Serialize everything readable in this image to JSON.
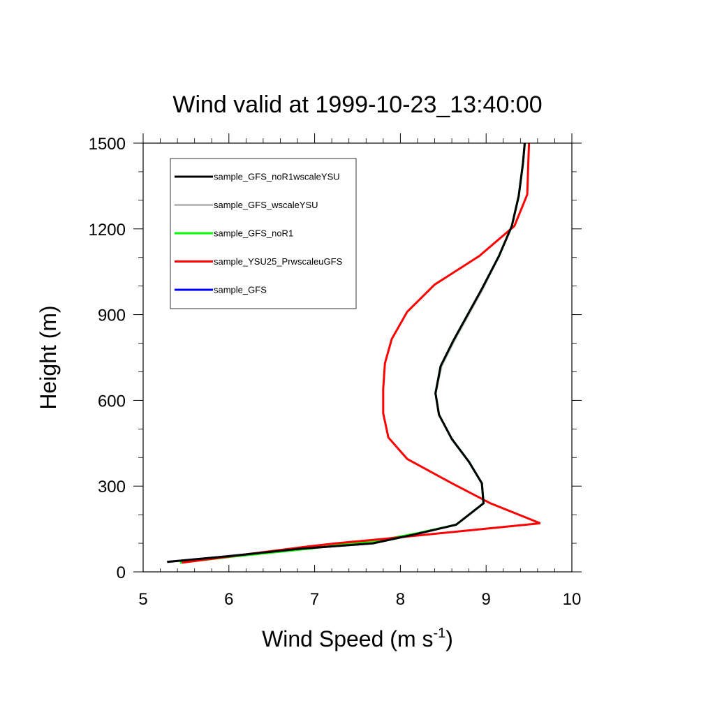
{
  "chart_data": {
    "type": "line",
    "title": "Wind valid at 1999-10-23_13:40:00",
    "xlabel": "Wind Speed (m s",
    "xlabel_sup": "-1",
    "xlabel_end": ")",
    "ylabel": "Height (m)",
    "xlim": [
      5,
      10
    ],
    "ylim": [
      0,
      1500
    ],
    "xticks": [
      5,
      6,
      7,
      8,
      9,
      10
    ],
    "yticks": [
      0,
      300,
      600,
      900,
      1200,
      1500
    ],
    "xtick_labels": [
      "5",
      "6",
      "7",
      "8",
      "9",
      "10"
    ],
    "ytick_labels": [
      "0",
      "300",
      "600",
      "900",
      "1200",
      "1500"
    ],
    "legend_position": "top-left",
    "series": [
      {
        "name": "sample_GFS",
        "color": "#0000ff",
        "points": [
          [
            5.28,
            35
          ],
          [
            6.0,
            55
          ],
          [
            6.8,
            80
          ],
          [
            7.68,
            100
          ],
          [
            8.15,
            130
          ],
          [
            8.65,
            165
          ],
          [
            8.97,
            240
          ],
          [
            8.95,
            310
          ],
          [
            8.8,
            385
          ],
          [
            8.6,
            465
          ],
          [
            8.45,
            550
          ],
          [
            8.41,
            625
          ],
          [
            8.47,
            720
          ],
          [
            8.62,
            810
          ],
          [
            8.95,
            990
          ],
          [
            9.15,
            1105
          ],
          [
            9.3,
            1210
          ],
          [
            9.38,
            1315
          ],
          [
            9.43,
            1430
          ],
          [
            9.45,
            1500
          ]
        ]
      },
      {
        "name": "sample_GFS_wscaleYSU",
        "color": "#bbbbbb",
        "points": [
          [
            5.3,
            35
          ],
          [
            6.0,
            55
          ],
          [
            6.8,
            80
          ],
          [
            7.68,
            100
          ],
          [
            8.15,
            130
          ],
          [
            8.65,
            165
          ],
          [
            8.97,
            240
          ],
          [
            8.95,
            310
          ],
          [
            8.8,
            385
          ],
          [
            8.6,
            465
          ],
          [
            8.45,
            550
          ],
          [
            8.41,
            625
          ],
          [
            8.48,
            720
          ],
          [
            8.63,
            810
          ],
          [
            8.96,
            990
          ],
          [
            9.15,
            1105
          ],
          [
            9.3,
            1210
          ],
          [
            9.38,
            1315
          ],
          [
            9.43,
            1430
          ],
          [
            9.45,
            1500
          ]
        ]
      },
      {
        "name": "sample_GFS_noR1",
        "color": "#00ff00",
        "points": [
          [
            5.43,
            32
          ],
          [
            6.0,
            52
          ],
          [
            6.9,
            80
          ],
          [
            7.75,
            110
          ],
          [
            8.2,
            135
          ],
          [
            8.65,
            165
          ],
          [
            8.97,
            240
          ],
          [
            8.95,
            310
          ],
          [
            8.8,
            385
          ],
          [
            8.6,
            465
          ],
          [
            8.45,
            550
          ],
          [
            8.41,
            625
          ],
          [
            8.47,
            720
          ],
          [
            8.62,
            810
          ],
          [
            8.95,
            990
          ],
          [
            9.15,
            1105
          ],
          [
            9.3,
            1210
          ],
          [
            9.38,
            1315
          ],
          [
            9.43,
            1430
          ],
          [
            9.45,
            1500
          ]
        ]
      },
      {
        "name": "sample_YSU25_PrwscaleuGFS",
        "color": "#ff0000",
        "points": [
          [
            5.45,
            32
          ],
          [
            6.3,
            65
          ],
          [
            6.95,
            90
          ],
          [
            7.25,
            100
          ],
          [
            7.8,
            115
          ],
          [
            9.63,
            170
          ],
          [
            9.05,
            240
          ],
          [
            8.6,
            310
          ],
          [
            8.08,
            395
          ],
          [
            7.86,
            470
          ],
          [
            7.8,
            555
          ],
          [
            7.8,
            640
          ],
          [
            7.82,
            730
          ],
          [
            7.9,
            815
          ],
          [
            8.08,
            910
          ],
          [
            8.4,
            1005
          ],
          [
            8.92,
            1105
          ],
          [
            9.33,
            1210
          ],
          [
            9.48,
            1320
          ],
          [
            9.5,
            1500
          ]
        ]
      },
      {
        "name": "sample_GFS_noR1wscaleYSU",
        "color": "#000000",
        "points": [
          [
            5.28,
            35
          ],
          [
            6.0,
            55
          ],
          [
            6.8,
            80
          ],
          [
            7.68,
            100
          ],
          [
            8.15,
            130
          ],
          [
            8.65,
            165
          ],
          [
            8.97,
            240
          ],
          [
            8.95,
            310
          ],
          [
            8.8,
            385
          ],
          [
            8.6,
            465
          ],
          [
            8.45,
            550
          ],
          [
            8.41,
            625
          ],
          [
            8.47,
            720
          ],
          [
            8.62,
            810
          ],
          [
            8.95,
            990
          ],
          [
            9.15,
            1105
          ],
          [
            9.3,
            1210
          ],
          [
            9.38,
            1315
          ],
          [
            9.43,
            1430
          ],
          [
            9.45,
            1500
          ]
        ]
      }
    ],
    "legend": [
      {
        "label": "sample_GFS_noR1wscaleYSU",
        "color": "#000000"
      },
      {
        "label": "sample_GFS_wscaleYSU",
        "color": "#bbbbbb"
      },
      {
        "label": "sample_GFS_noR1",
        "color": "#00ff00"
      },
      {
        "label": "sample_YSU25_PrwscaleuGFS",
        "color": "#ff0000"
      },
      {
        "label": "sample_GFS",
        "color": "#0000ff"
      }
    ]
  }
}
